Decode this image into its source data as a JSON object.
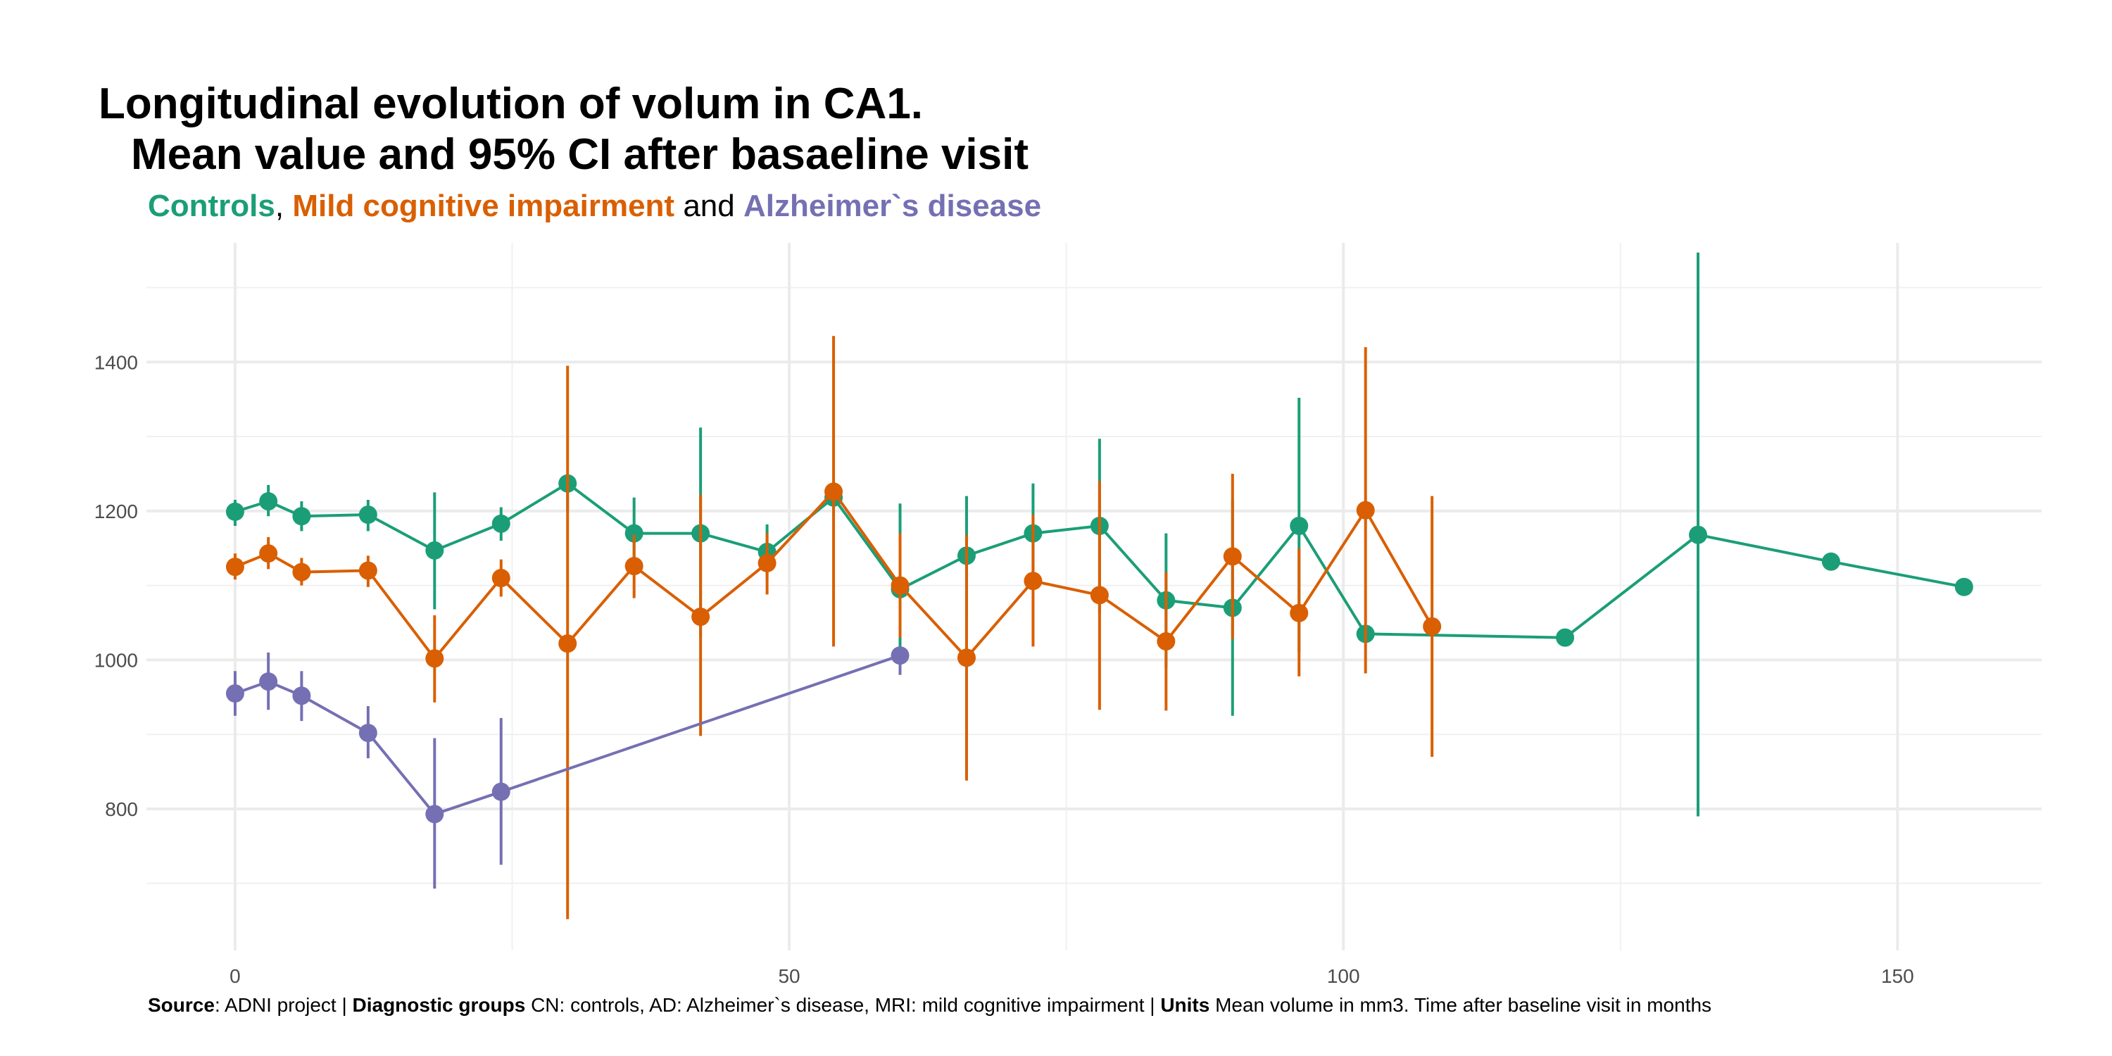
{
  "title_line1": "Longitudinal evolution of volum in CA1.",
  "title_line2": "Mean value and 95% CI after basaeline visit",
  "subtitle": {
    "controls": "Controls",
    "sep1": ", ",
    "mci": "Mild cognitive impairment",
    "sep2": " and ",
    "ad": "Alzheimer`s disease"
  },
  "caption": {
    "source_label": "Source",
    "source_text": ": ADNI project | ",
    "groups_label": "Diagnostic groups",
    "groups_text": " CN: controls, AD: Alzheimer`s disease, MRI: mild cognitive impairment | ",
    "units_label": "Units",
    "units_text": " Mean volume in mm3. Time after baseline visit in months"
  },
  "chart_data": {
    "type": "line",
    "title": "Longitudinal evolution of volum in CA1. Mean value and 95% CI after basaeline visit",
    "xlabel": "",
    "ylabel": "",
    "xlim": [
      -8,
      163
    ],
    "ylim": [
      610,
      1560
    ],
    "x_ticks": [
      0,
      50,
      100,
      150
    ],
    "y_ticks": [
      800,
      1000,
      1200,
      1400
    ],
    "grid": true,
    "legend": "none",
    "series": [
      {
        "name": "Controls",
        "color": "#1B9E77",
        "points": [
          {
            "x": 0,
            "y": 1199,
            "lo": 1180,
            "hi": 1215
          },
          {
            "x": 3,
            "y": 1213,
            "lo": 1193,
            "hi": 1235
          },
          {
            "x": 6,
            "y": 1193,
            "lo": 1173,
            "hi": 1213
          },
          {
            "x": 12,
            "y": 1195,
            "lo": 1173,
            "hi": 1215
          },
          {
            "x": 18,
            "y": 1147,
            "lo": 1068,
            "hi": 1225
          },
          {
            "x": 24,
            "y": 1183,
            "lo": 1160,
            "hi": 1205
          },
          {
            "x": 30,
            "y": 1237,
            "lo": 1200,
            "hi": 1237
          },
          {
            "x": 36,
            "y": 1170,
            "lo": 1128,
            "hi": 1218
          },
          {
            "x": 42,
            "y": 1170,
            "lo": 1030,
            "hi": 1312
          },
          {
            "x": 48,
            "y": 1145,
            "lo": 1110,
            "hi": 1182
          },
          {
            "x": 54,
            "y": 1218,
            "lo": 1205,
            "hi": 1232
          },
          {
            "x": 60,
            "y": 1095,
            "lo": 980,
            "hi": 1210
          },
          {
            "x": 66,
            "y": 1140,
            "lo": 1060,
            "hi": 1220
          },
          {
            "x": 72,
            "y": 1170,
            "lo": 1105,
            "hi": 1237
          },
          {
            "x": 78,
            "y": 1180,
            "lo": 1062,
            "hi": 1297
          },
          {
            "x": 84,
            "y": 1080,
            "lo": 990,
            "hi": 1170
          },
          {
            "x": 90,
            "y": 1070,
            "lo": 925,
            "hi": 1215
          },
          {
            "x": 96,
            "y": 1180,
            "lo": 1010,
            "hi": 1352
          },
          {
            "x": 102,
            "y": 1035,
            "lo": 1035,
            "hi": 1035
          },
          {
            "x": 120,
            "y": 1030,
            "lo": 1030,
            "hi": 1030
          },
          {
            "x": 132,
            "y": 1168,
            "lo": 790,
            "hi": 1547
          },
          {
            "x": 144,
            "y": 1132,
            "lo": 1132,
            "hi": 1132
          },
          {
            "x": 156,
            "y": 1098,
            "lo": 1098,
            "hi": 1098
          }
        ]
      },
      {
        "name": "Mild cognitive impairment",
        "color": "#D95F02",
        "points": [
          {
            "x": 0,
            "y": 1125,
            "lo": 1108,
            "hi": 1143
          },
          {
            "x": 3,
            "y": 1143,
            "lo": 1122,
            "hi": 1165
          },
          {
            "x": 6,
            "y": 1118,
            "lo": 1100,
            "hi": 1137
          },
          {
            "x": 12,
            "y": 1120,
            "lo": 1098,
            "hi": 1140
          },
          {
            "x": 18,
            "y": 1002,
            "lo": 943,
            "hi": 1060
          },
          {
            "x": 24,
            "y": 1110,
            "lo": 1085,
            "hi": 1135
          },
          {
            "x": 30,
            "y": 1022,
            "lo": 652,
            "hi": 1395
          },
          {
            "x": 36,
            "y": 1126,
            "lo": 1083,
            "hi": 1168
          },
          {
            "x": 42,
            "y": 1058,
            "lo": 898,
            "hi": 1222
          },
          {
            "x": 48,
            "y": 1130,
            "lo": 1088,
            "hi": 1170
          },
          {
            "x": 54,
            "y": 1226,
            "lo": 1018,
            "hi": 1435
          },
          {
            "x": 60,
            "y": 1100,
            "lo": 1030,
            "hi": 1170
          },
          {
            "x": 66,
            "y": 1003,
            "lo": 838,
            "hi": 1168
          },
          {
            "x": 72,
            "y": 1106,
            "lo": 1018,
            "hi": 1195
          },
          {
            "x": 78,
            "y": 1087,
            "lo": 933,
            "hi": 1240
          },
          {
            "x": 84,
            "y": 1025,
            "lo": 932,
            "hi": 1118
          },
          {
            "x": 90,
            "y": 1139,
            "lo": 1028,
            "hi": 1250
          },
          {
            "x": 96,
            "y": 1063,
            "lo": 978,
            "hi": 1150
          },
          {
            "x": 102,
            "y": 1201,
            "lo": 982,
            "hi": 1420
          },
          {
            "x": 108,
            "y": 1045,
            "lo": 870,
            "hi": 1220
          }
        ]
      },
      {
        "name": "Alzheimer`s disease",
        "color": "#7570B3",
        "points": [
          {
            "x": 0,
            "y": 955,
            "lo": 925,
            "hi": 985
          },
          {
            "x": 3,
            "y": 971,
            "lo": 933,
            "hi": 1010
          },
          {
            "x": 6,
            "y": 952,
            "lo": 918,
            "hi": 985
          },
          {
            "x": 12,
            "y": 902,
            "lo": 868,
            "hi": 938
          },
          {
            "x": 18,
            "y": 793,
            "lo": 693,
            "hi": 895
          },
          {
            "x": 24,
            "y": 823,
            "lo": 725,
            "hi": 922
          },
          {
            "x": 60,
            "y": 1006,
            "lo": 980,
            "hi": 1006
          }
        ]
      }
    ]
  }
}
